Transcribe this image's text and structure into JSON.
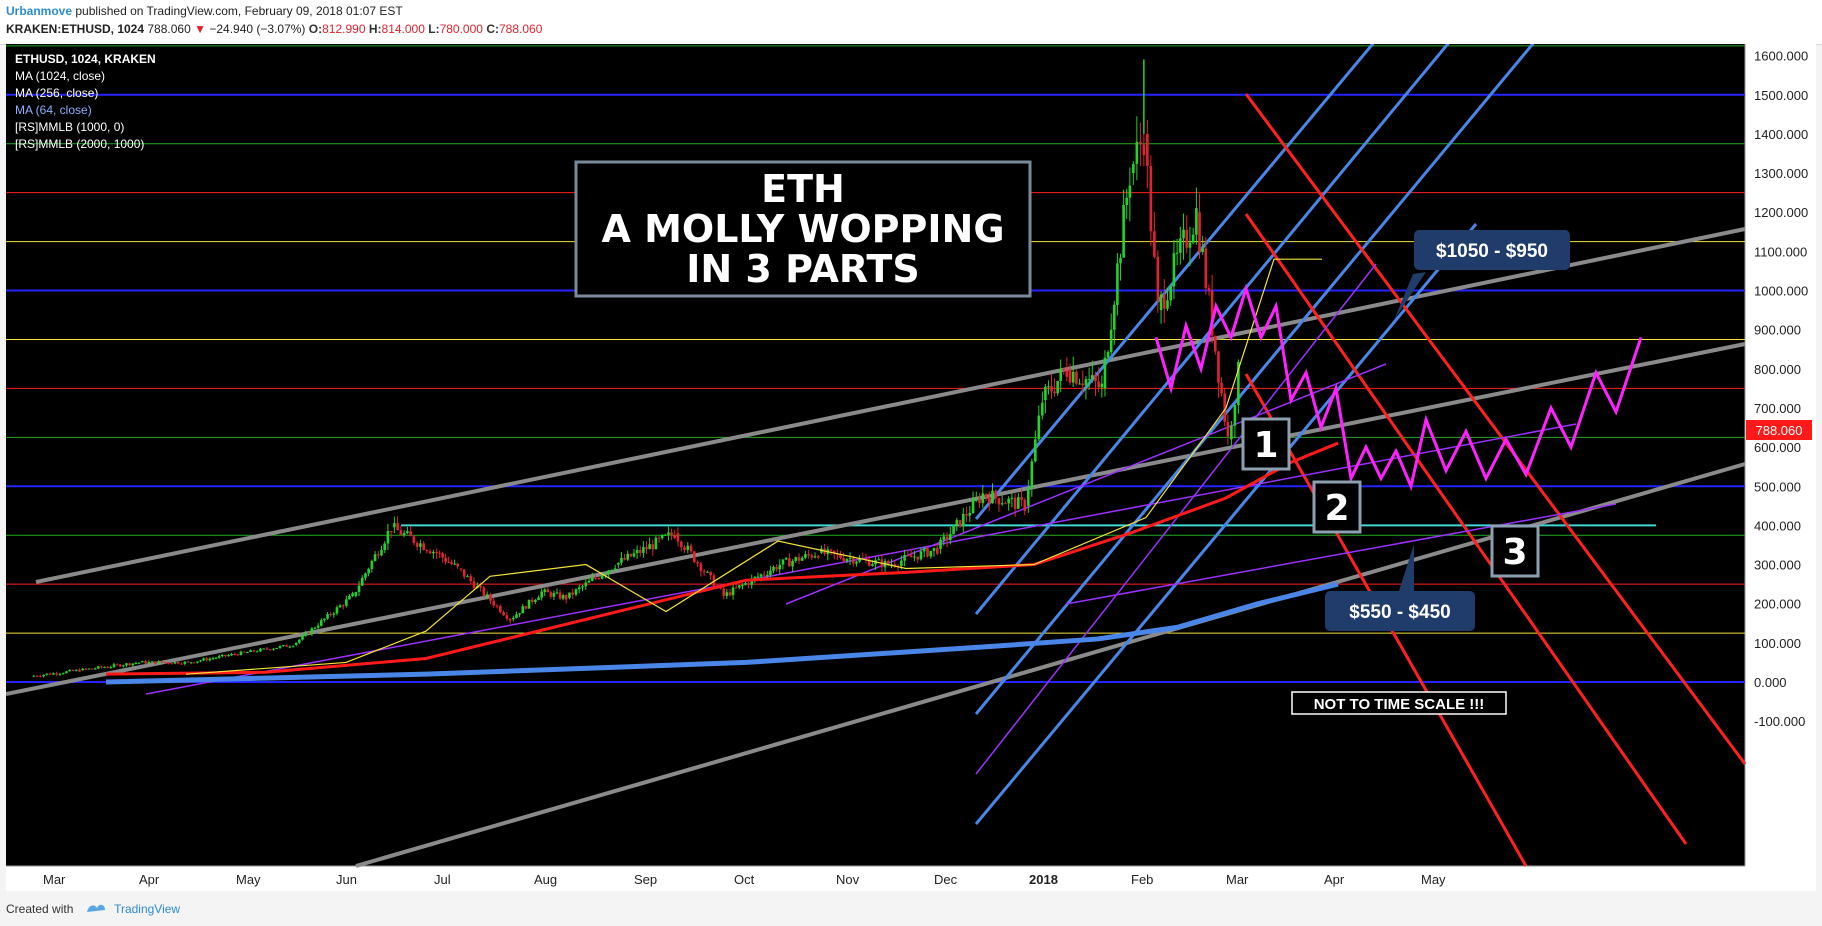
{
  "header": {
    "author": "Urbanmove",
    "published_text": "published on TradingView.com, February 09, 2018 01:07 EST",
    "symbol_line": "KRAKEN:ETHUSD, 1024",
    "price": "788.060",
    "change": "−24.940 (−3.07%)",
    "open_label": "O:",
    "open": "812.990",
    "high_label": "H:",
    "high": "814.000",
    "low_label": "L:",
    "low": "780.000",
    "close_label": "C:",
    "close": "788.060"
  },
  "legend": {
    "symbol": "ETHUSD, 1024, KRAKEN",
    "items": [
      {
        "text": "MA (1024, close)",
        "color": "#ffffff"
      },
      {
        "text": "MA (256, close)",
        "color": "#ffffff"
      },
      {
        "text": "MA (64, close)",
        "color": "#8fb0ff"
      },
      {
        "text": "[RS]MMLB (1000, 0)",
        "color": "#ffffff"
      },
      {
        "text": "[RS]MMLB (2000, 1000)",
        "color": "#ffffff"
      }
    ]
  },
  "annotations": {
    "title_lines": [
      "ETH",
      "A MOLLY WOPPING",
      "IN 3 PARTS"
    ],
    "callout_top": "$1050 - $950",
    "callout_bottom": "$550 - $450",
    "box1": "1",
    "box2": "2",
    "box3": "3",
    "note": "NOT TO TIME SCALE !!!"
  },
  "footer": {
    "created_with": "Created with",
    "brand": "TradingView"
  },
  "colors": {
    "background": "#000000",
    "up_candle": "#22d32a",
    "down_candle": "#e0232f",
    "ma_1024": "#4a86e8",
    "ma_256": "#ff1a1a",
    "ma_64": "#f3e23a",
    "projection": "#ff22ff",
    "blue_channel": "#4a86e8",
    "red_channel": "#ff2020",
    "gray_channel": "#8a8a8a",
    "purple_lines": "#9b30ff",
    "support_line": "#3fd7d7",
    "price_tag": "#ff1a1a"
  },
  "chart_data": {
    "type": "candlestick",
    "y_axis": {
      "ticks": [
        "1600.000",
        "1500.000",
        "1400.000",
        "1300.000",
        "1200.000",
        "1100.000",
        "1000.000",
        "900.000",
        "800.000",
        "700.000",
        "600.000",
        "500.000",
        "400.000",
        "300.000",
        "200.000",
        "100.000",
        "0.000",
        "-100.000"
      ],
      "ylim": [
        -160,
        1640
      ],
      "current_price_label": "788.060"
    },
    "x_axis": {
      "ticks": [
        "Mar",
        "Apr",
        "May",
        "Jun",
        "Jul",
        "Aug",
        "Sep",
        "Oct",
        "Nov",
        "Dec",
        "2018",
        "Feb",
        "Mar",
        "Apr",
        "May"
      ]
    },
    "price_path": [
      {
        "t": "2017-03-01",
        "v": 15
      },
      {
        "t": "2017-03-15",
        "v": 30
      },
      {
        "t": "2017-04-01",
        "v": 50
      },
      {
        "t": "2017-04-15",
        "v": 50
      },
      {
        "t": "2017-05-01",
        "v": 75
      },
      {
        "t": "2017-05-15",
        "v": 95
      },
      {
        "t": "2017-06-01",
        "v": 220
      },
      {
        "t": "2017-06-12",
        "v": 395
      },
      {
        "t": "2017-06-25",
        "v": 330
      },
      {
        "t": "2017-07-01",
        "v": 290
      },
      {
        "t": "2017-07-16",
        "v": 160
      },
      {
        "t": "2017-07-25",
        "v": 230
      },
      {
        "t": "2017-08-01",
        "v": 215
      },
      {
        "t": "2017-08-15",
        "v": 300
      },
      {
        "t": "2017-09-01",
        "v": 380
      },
      {
        "t": "2017-09-15",
        "v": 220
      },
      {
        "t": "2017-10-01",
        "v": 300
      },
      {
        "t": "2017-10-12",
        "v": 330
      },
      {
        "t": "2017-11-01",
        "v": 300
      },
      {
        "t": "2017-11-15",
        "v": 340
      },
      {
        "t": "2017-11-28",
        "v": 480
      },
      {
        "t": "2017-12-10",
        "v": 450
      },
      {
        "t": "2017-12-15",
        "v": 720
      },
      {
        "t": "2017-12-22",
        "v": 800
      },
      {
        "t": "2018-01-01",
        "v": 750
      },
      {
        "t": "2018-01-09",
        "v": 1300
      },
      {
        "t": "2018-01-13",
        "v": 1400
      },
      {
        "t": "2018-01-17",
        "v": 950
      },
      {
        "t": "2018-01-28",
        "v": 1200
      },
      {
        "t": "2018-02-06",
        "v": 620
      },
      {
        "t": "2018-02-09",
        "v": 788
      }
    ],
    "high_annotation": {
      "t": "2018-01-13",
      "v": 1590
    },
    "moving_averages": [
      {
        "name": "MA (1024, close)",
        "points": [
          [
            0,
            0
          ],
          [
            0.2,
            20
          ],
          [
            0.4,
            50
          ],
          [
            0.55,
            90
          ],
          [
            0.62,
            110
          ],
          [
            0.67,
            140
          ],
          [
            0.72,
            200
          ],
          [
            0.77,
            250
          ]
        ]
      },
      {
        "name": "MA (256, close)",
        "points": [
          [
            0,
            20
          ],
          [
            0.1,
            25
          ],
          [
            0.2,
            60
          ],
          [
            0.3,
            160
          ],
          [
            0.4,
            260
          ],
          [
            0.5,
            280
          ],
          [
            0.58,
            300
          ],
          [
            0.64,
            380
          ],
          [
            0.7,
            470
          ],
          [
            0.74,
            560
          ],
          [
            0.77,
            610
          ]
        ]
      },
      {
        "name": "MA (64, close)",
        "points": [
          [
            0.05,
            20
          ],
          [
            0.15,
            50
          ],
          [
            0.2,
            130
          ],
          [
            0.24,
            270
          ],
          [
            0.3,
            300
          ],
          [
            0.35,
            180
          ],
          [
            0.42,
            360
          ],
          [
            0.5,
            290
          ],
          [
            0.58,
            300
          ],
          [
            0.65,
            420
          ],
          [
            0.7,
            700
          ],
          [
            0.73,
            1080
          ],
          [
            0.76,
            1080
          ]
        ]
      }
    ],
    "horizontal_levels": [
      {
        "v": 1625,
        "color": "#22aa22"
      },
      {
        "v": 1500,
        "color": "#2424ff"
      },
      {
        "v": 1375,
        "color": "#22aa22"
      },
      {
        "v": 1250,
        "color": "#ff2020"
      },
      {
        "v": 1125,
        "color": "#f3e23a"
      },
      {
        "v": 1000,
        "color": "#2424ff"
      },
      {
        "v": 875,
        "color": "#f3e23a"
      },
      {
        "v": 750,
        "color": "#ff2020"
      },
      {
        "v": 625,
        "color": "#22aa22"
      },
      {
        "v": 500,
        "color": "#2424ff"
      },
      {
        "v": 375,
        "color": "#22aa22"
      },
      {
        "v": 250,
        "color": "#ff2020"
      },
      {
        "v": 125,
        "color": "#f3e23a"
      },
      {
        "v": 0,
        "color": "#2424ff"
      }
    ],
    "support_line": {
      "v": 400
    },
    "projection_path": [
      [
        1150,
        880
      ],
      [
        1165,
        750
      ],
      [
        1180,
        910
      ],
      [
        1195,
        800
      ],
      [
        1210,
        960
      ],
      [
        1225,
        880
      ],
      [
        1240,
        1005
      ],
      [
        1255,
        880
      ],
      [
        1270,
        960
      ],
      [
        1285,
        720
      ],
      [
        1300,
        790
      ],
      [
        1315,
        650
      ],
      [
        1330,
        750
      ],
      [
        1345,
        520
      ],
      [
        1360,
        600
      ],
      [
        1375,
        520
      ],
      [
        1390,
        590
      ],
      [
        1405,
        500
      ],
      [
        1420,
        670
      ],
      [
        1440,
        540
      ],
      [
        1460,
        640
      ],
      [
        1480,
        520
      ],
      [
        1500,
        620
      ],
      [
        1520,
        530
      ],
      [
        1545,
        700
      ],
      [
        1565,
        600
      ],
      [
        1590,
        790
      ],
      [
        1610,
        690
      ],
      [
        1635,
        880
      ]
    ]
  }
}
